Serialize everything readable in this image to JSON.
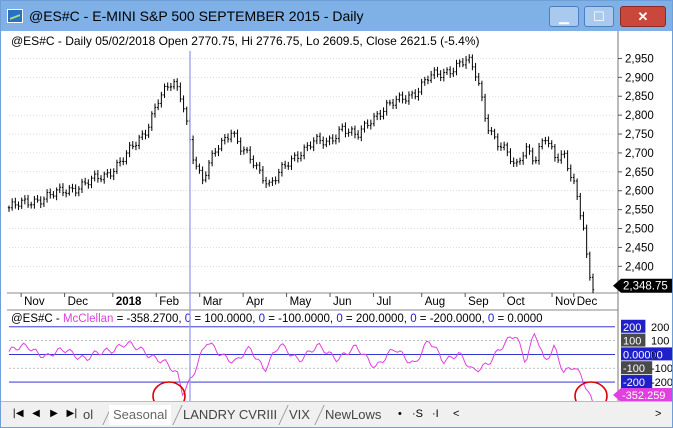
{
  "window": {
    "title": "@ES#C - E-MINI S&P 500 SEPTEMBER 2015 - Daily",
    "min_symbol": "▁",
    "max_symbol": "☐",
    "close_symbol": "✕"
  },
  "price_header": "@ES#C - Daily 05/02/2018 Open 2770.75, Hi 2776.75, Lo 2609.5, Close 2621.5 (-5.4%)",
  "indicator_header": {
    "prefix": "@ES#C - ",
    "name": "McClellan",
    "value_text": " = -358.2700, ",
    "levels": [
      {
        "zero": "0",
        "text": " = 100.0000, "
      },
      {
        "zero": "0",
        "text": " = -100.0000, "
      },
      {
        "zero": "0",
        "text": " = 200.0000, "
      },
      {
        "zero": "0",
        "text": " = -200.0000, "
      },
      {
        "zero": "0",
        "text": " = 0.0000"
      }
    ]
  },
  "colors": {
    "candle": "#000000",
    "mcclellan": "#e040e0",
    "level_line": "#1a1acc",
    "cursor_line": "#9b9bf0",
    "circle": "#dd0000",
    "last_price_bg": "#000000",
    "indicator_value_bg": "#e040e0",
    "blue_label_bg": "#2020c8",
    "gray_label_bg": "#4a4a4a"
  },
  "price_axis": {
    "ticks": [
      "2,950",
      "2,900",
      "2,850",
      "2,800",
      "2,750",
      "2,700",
      "2,650",
      "2,600",
      "2,550",
      "2,500",
      "2,450",
      "2,400"
    ],
    "last_price_label": "2,348.75"
  },
  "time_axis": {
    "labels": [
      "Nov",
      "Dec",
      "2018",
      "Feb",
      "Mar",
      "Apr",
      "May",
      "Jun",
      "Jul",
      "Aug",
      "Sep",
      "Oct",
      "Nov",
      "Dec"
    ]
  },
  "indicator_axis": {
    "labels": [
      {
        "text": "200",
        "style": "blue"
      },
      {
        "text": "200",
        "style": "plain"
      },
      {
        "text": "100",
        "style": "gray"
      },
      {
        "text": "100",
        "style": "plain"
      },
      {
        "text": "0.00000",
        "style": "blue"
      },
      {
        "text": "0",
        "style": "plain"
      },
      {
        "text": "-100",
        "style": "gray"
      },
      {
        "text": "-100",
        "style": "plain"
      },
      {
        "text": "-200",
        "style": "blue"
      },
      {
        "text": "-200",
        "style": "plain"
      },
      {
        "text": "-300",
        "style": "plain"
      },
      {
        "text": "-352.259",
        "style": "magenta"
      }
    ]
  },
  "chart_data": {
    "type": "candlestick",
    "title": "@ES#C - Daily 05/02/2018 Open 2770.75, Hi 2776.75, Lo 2609.5, Close 2621.5 (-5.4%)",
    "price_range": [
      2340,
      2975
    ],
    "x_labels": [
      "Nov",
      "Dec",
      "2018",
      "Feb",
      "Mar",
      "Apr",
      "May",
      "Jun",
      "Jul",
      "Aug",
      "Sep",
      "Oct",
      "Nov",
      "Dec"
    ],
    "price_path": [
      {
        "t": 0,
        "v": 2555
      },
      {
        "t": 8,
        "v": 2585
      },
      {
        "t": 14,
        "v": 2610
      },
      {
        "t": 20,
        "v": 2640
      },
      {
        "t": 24,
        "v": 2690
      },
      {
        "t": 28,
        "v": 2750
      },
      {
        "t": 31,
        "v": 2845
      },
      {
        "t": 34,
        "v": 2885
      },
      {
        "t": 36,
        "v": 2840
      },
      {
        "t": 38,
        "v": 2700
      },
      {
        "t": 40,
        "v": 2620
      },
      {
        "t": 43,
        "v": 2715
      },
      {
        "t": 46,
        "v": 2760
      },
      {
        "t": 48,
        "v": 2710
      },
      {
        "t": 51,
        "v": 2670
      },
      {
        "t": 54,
        "v": 2615
      },
      {
        "t": 57,
        "v": 2660
      },
      {
        "t": 60,
        "v": 2700
      },
      {
        "t": 63,
        "v": 2730
      },
      {
        "t": 66,
        "v": 2725
      },
      {
        "t": 69,
        "v": 2770
      },
      {
        "t": 72,
        "v": 2740
      },
      {
        "t": 75,
        "v": 2790
      },
      {
        "t": 78,
        "v": 2820
      },
      {
        "t": 81,
        "v": 2840
      },
      {
        "t": 84,
        "v": 2860
      },
      {
        "t": 87,
        "v": 2900
      },
      {
        "t": 90,
        "v": 2910
      },
      {
        "t": 93,
        "v": 2935
      },
      {
        "t": 95,
        "v": 2945
      },
      {
        "t": 97,
        "v": 2900
      },
      {
        "t": 99,
        "v": 2780
      },
      {
        "t": 101,
        "v": 2730
      },
      {
        "t": 103,
        "v": 2700
      },
      {
        "t": 105,
        "v": 2660
      },
      {
        "t": 107,
        "v": 2720
      },
      {
        "t": 109,
        "v": 2680
      },
      {
        "t": 111,
        "v": 2740
      },
      {
        "t": 113,
        "v": 2690
      },
      {
        "t": 115,
        "v": 2700
      },
      {
        "t": 117,
        "v": 2620
      },
      {
        "t": 119,
        "v": 2500
      },
      {
        "t": 120,
        "v": 2380
      },
      {
        "t": 121,
        "v": 2348.75
      }
    ],
    "oscillator": {
      "name": "McClellan",
      "last_value": -352.259,
      "range": [
        -330,
        220
      ],
      "levels": [
        200,
        100,
        0,
        -100,
        -200
      ],
      "path": [
        {
          "t": 0,
          "v": 20
        },
        {
          "t": 4,
          "v": 60
        },
        {
          "t": 8,
          "v": -20
        },
        {
          "t": 12,
          "v": 40
        },
        {
          "t": 16,
          "v": -40
        },
        {
          "t": 20,
          "v": 30
        },
        {
          "t": 24,
          "v": 70
        },
        {
          "t": 28,
          "v": 30
        },
        {
          "t": 32,
          "v": -60
        },
        {
          "t": 35,
          "v": -150
        },
        {
          "t": 36,
          "v": -270
        },
        {
          "t": 38,
          "v": -150
        },
        {
          "t": 41,
          "v": 80
        },
        {
          "t": 44,
          "v": 10
        },
        {
          "t": 47,
          "v": -60
        },
        {
          "t": 50,
          "v": 40
        },
        {
          "t": 53,
          "v": -100
        },
        {
          "t": 56,
          "v": 60
        },
        {
          "t": 60,
          "v": -30
        },
        {
          "t": 64,
          "v": 50
        },
        {
          "t": 68,
          "v": -20
        },
        {
          "t": 72,
          "v": 40
        },
        {
          "t": 76,
          "v": -80
        },
        {
          "t": 80,
          "v": 30
        },
        {
          "t": 84,
          "v": -60
        },
        {
          "t": 87,
          "v": 90
        },
        {
          "t": 90,
          "v": -40
        },
        {
          "t": 93,
          "v": 10
        },
        {
          "t": 96,
          "v": -130
        },
        {
          "t": 99,
          "v": -60
        },
        {
          "t": 102,
          "v": 40
        },
        {
          "t": 105,
          "v": 150
        },
        {
          "t": 107,
          "v": -40
        },
        {
          "t": 109,
          "v": 160
        },
        {
          "t": 111,
          "v": -70
        },
        {
          "t": 113,
          "v": 60
        },
        {
          "t": 115,
          "v": -120
        },
        {
          "t": 117,
          "v": -90
        },
        {
          "t": 119,
          "v": -200
        },
        {
          "t": 121,
          "v": -352
        }
      ]
    }
  },
  "tabs": {
    "partial": "ol",
    "items": [
      "Seasonal",
      "LANDRY CVRIII",
      "VIX",
      "NewLows"
    ],
    "active": "Seasonal",
    "extra_buttons": [
      "•",
      "·S",
      "·I"
    ]
  },
  "nav_buttons": [
    "|◀",
    "◀",
    "▶",
    "▶|"
  ],
  "scroll_buttons": [
    "<",
    ">"
  ]
}
